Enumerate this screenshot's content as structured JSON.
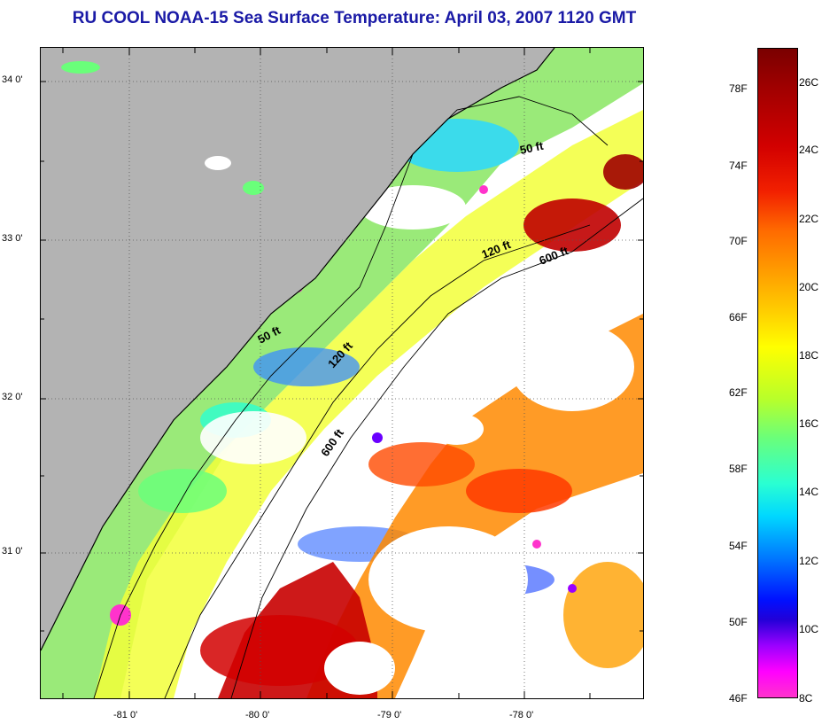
{
  "title": "RU COOL  NOAA-15  Sea Surface Temperature:  April 03, 2007 1120 GMT",
  "map": {
    "lat_labels": [
      "34 0'",
      "33 0'",
      "32 0'",
      "31 0'"
    ],
    "lon_labels": [
      "-81 0'",
      "-80 0'",
      "-79 0'",
      "-78 0'"
    ],
    "contour_labels": [
      "50 ft",
      "120 ft",
      "600 ft",
      "50 ft",
      "120 ft",
      "600 ft"
    ],
    "colors": {
      "land": "#b3b3b3",
      "cloud": "#ffffff",
      "gridline": "#555555"
    }
  },
  "colorbar": {
    "fahrenheit_labels": [
      "78F",
      "74F",
      "70F",
      "66F",
      "62F",
      "58F",
      "54F",
      "50F",
      "46F"
    ],
    "celsius_labels": [
      "26C",
      "24C",
      "22C",
      "20C",
      "18C",
      "16C",
      "14C",
      "12C",
      "10C",
      "8C"
    ]
  }
}
